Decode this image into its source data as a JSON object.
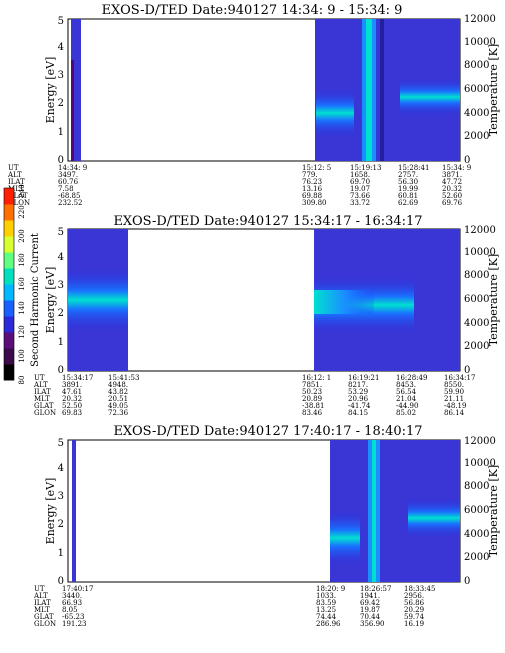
{
  "colorbar": {
    "label": "Second Harmonic Current",
    "ticks": [
      "80",
      "100",
      "120",
      "140",
      "160",
      "180",
      "200",
      "220",
      "240"
    ],
    "colors": [
      "#000000",
      "#3a0a4a",
      "#5b0e7a",
      "#2a2ad8",
      "#1a60ff",
      "#00b8ff",
      "#00e0c0",
      "#60ff80",
      "#d8ff30",
      "#ffd000",
      "#ff7000",
      "#ff2000"
    ]
  },
  "panels": [
    {
      "title": "EXOS-D/TED   Date:940127  14:34: 9 - 15:34: 9",
      "left_label": "Energy [eV]",
      "right_label": "Temperature [K]",
      "left_ticks": [
        "0",
        "1",
        "2",
        "3",
        "4",
        "5"
      ],
      "right_ticks": [
        "0",
        "2000",
        "4000",
        "6000",
        "8000",
        "10000",
        "12000"
      ],
      "row_labels": [
        "UT",
        "ALT",
        "ILAT",
        "MLT",
        "GLAT",
        "GLON"
      ],
      "columns": [
        {
          "values": [
            "14:34: 9",
            "3497.",
            "60.76",
            "7.58",
            "-68.85",
            "232.52"
          ]
        },
        {
          "values": [
            "15:12: 5",
            "779.",
            "76.23",
            "13.16",
            "69.88",
            "309.80"
          ]
        },
        {
          "values": [
            "15:19:13",
            "1658.",
            "69.70",
            "19.07",
            "73.66",
            "33.72"
          ]
        },
        {
          "values": [
            "15:28:41",
            "2757.",
            "56.30",
            "19.99",
            "60.81",
            "62.69"
          ]
        },
        {
          "values": [
            "15:34: 9",
            "3871.",
            "47.72",
            "20.32",
            "52.60",
            "69.76"
          ]
        }
      ]
    },
    {
      "title": "EXOS-D/TED   Date:940127  15:34:17 - 16:34:17",
      "left_label": "Energy [eV]",
      "right_label": "Temperature [K]",
      "left_ticks": [
        "0",
        "1",
        "2",
        "3",
        "4",
        "5"
      ],
      "right_ticks": [
        "0",
        "2000",
        "4000",
        "6000",
        "8000",
        "10000",
        "12000"
      ],
      "row_labels": [
        "UT",
        "ALT",
        "ILAT",
        "MLT",
        "GLAT",
        "GLON"
      ],
      "columns": [
        {
          "values": [
            "15:34:17",
            "3891.",
            "47.61",
            "20.32",
            "52.50",
            "69.83"
          ]
        },
        {
          "values": [
            "15:41:53",
            "4948.",
            "43.82",
            "20.51",
            "49.05",
            "72.36"
          ]
        },
        {
          "values": [
            "16:12: 1",
            "7851.",
            "50.23",
            "20.89",
            "-38.81",
            "83.46"
          ]
        },
        {
          "values": [
            "16:19:21",
            "8217.",
            "53.29",
            "20.96",
            "-41.74",
            "84.15"
          ]
        },
        {
          "values": [
            "16:28:49",
            "8453.",
            "56.54",
            "21.04",
            "-44.90",
            "85.02"
          ]
        },
        {
          "values": [
            "16:34:17",
            "8550.",
            "59.90",
            "21.11",
            "-48.19",
            "86.14"
          ]
        }
      ]
    },
    {
      "title": "EXOS-D/TED   Date:940127  17:40:17 - 18:40:17",
      "left_label": "Energy [eV]",
      "right_label": "Temperature [K]",
      "left_ticks": [
        "0",
        "1",
        "2",
        "3",
        "4",
        "5"
      ],
      "right_ticks": [
        "0",
        "2000",
        "4000",
        "6000",
        "8000",
        "10000",
        "12000"
      ],
      "row_labels": [
        "UT",
        "ALT",
        "ILAT",
        "MLT",
        "GLAT",
        "GLON"
      ],
      "columns": [
        {
          "values": [
            "17:40:17",
            "3440.",
            "66.93",
            "8.05",
            "-65.23",
            "191.23"
          ]
        },
        {
          "values": [
            "18:20: 9",
            "1033.",
            "83.59",
            "13.25",
            "74.44",
            "286.96"
          ]
        },
        {
          "values": [
            "18:26:57",
            "1941.",
            "69.42",
            "19.87",
            "70.44",
            "356.90"
          ]
        },
        {
          "values": [
            "18:33:45",
            "2956.",
            "56.86",
            "20.29",
            "59.74",
            "16.19"
          ]
        }
      ]
    }
  ]
}
